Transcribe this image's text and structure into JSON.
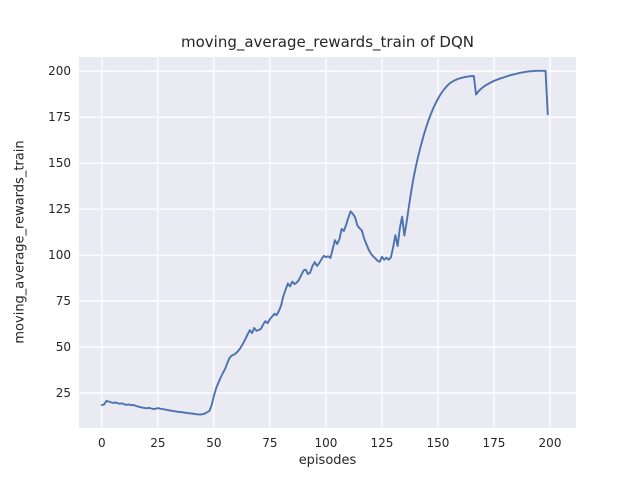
{
  "chart_data": {
    "type": "line",
    "title": "moving_average_rewards_train of DQN",
    "xlabel": "episodes",
    "ylabel": "moving_average_rewards_train",
    "x0": 0,
    "dx": 1,
    "values": [
      18.5,
      18.8,
      20.7,
      20.4,
      20.0,
      19.6,
      19.9,
      19.5,
      19.2,
      19.4,
      18.9,
      18.6,
      18.8,
      18.4,
      18.6,
      18.1,
      17.7,
      17.4,
      17.1,
      16.9,
      16.7,
      17.0,
      16.6,
      16.3,
      16.5,
      16.8,
      16.5,
      16.3,
      16.1,
      15.8,
      15.6,
      15.4,
      15.2,
      15.0,
      14.8,
      14.7,
      14.5,
      14.3,
      14.2,
      14.0,
      13.9,
      13.7,
      13.5,
      13.4,
      13.3,
      13.5,
      13.9,
      14.6,
      15.2,
      18.4,
      23.5,
      27.6,
      30.6,
      33.4,
      35.9,
      38.1,
      41.3,
      44.2,
      45.4,
      45.9,
      46.8,
      48.1,
      49.8,
      51.9,
      54.2,
      56.8,
      59.2,
      57.6,
      60.4,
      58.8,
      59.3,
      59.9,
      62.3,
      64.1,
      63.0,
      65.2,
      66.6,
      68.1,
      67.4,
      69.6,
      72.6,
      77.8,
      81.2,
      84.6,
      83.0,
      85.6,
      84.2,
      85.1,
      86.6,
      89.2,
      91.6,
      92.1,
      89.7,
      90.6,
      94.1,
      96.2,
      94.1,
      95.6,
      97.7,
      99.6,
      98.9,
      99.4,
      98.4,
      103.2,
      108.1,
      106.0,
      108.6,
      114.2,
      113.1,
      116.4,
      120.3,
      123.8,
      122.4,
      120.6,
      116.2,
      114.6,
      113.4,
      109.2,
      106.1,
      103.2,
      100.9,
      99.4,
      98.3,
      96.9,
      96.4,
      99.1,
      97.4,
      98.6,
      97.5,
      98.8,
      104.3,
      110.8,
      104.9,
      114.8,
      120.9,
      110.6,
      117.8,
      126.3,
      134.2,
      141.3,
      147.4,
      152.9,
      157.8,
      162.4,
      166.6,
      170.5,
      174.0,
      177.2,
      180.1,
      182.7,
      185.0,
      187.1,
      188.9,
      190.5,
      191.9,
      193.1,
      194.0,
      194.7,
      195.3,
      195.8,
      196.2,
      196.5,
      196.8,
      197.0,
      197.2,
      197.3,
      197.4,
      187.3,
      188.9,
      190.2,
      191.2,
      192.1,
      192.8,
      193.5,
      194.1,
      194.7,
      195.2,
      195.7,
      196.1,
      196.5,
      196.9,
      197.3,
      197.7,
      198.0,
      198.3,
      198.6,
      198.9,
      199.2,
      199.4,
      199.6,
      199.8,
      199.9,
      200.0,
      200.1,
      200.2,
      200.2,
      200.2,
      200.2,
      200.2,
      176.5
    ],
    "xticks": [
      0,
      25,
      50,
      75,
      100,
      125,
      150,
      175,
      200
    ],
    "yticks": [
      25,
      50,
      75,
      100,
      125,
      150,
      175,
      200
    ],
    "xlim": [
      -10.2,
      211.6
    ],
    "ylim": [
      6.0,
      207.7
    ],
    "grid": true,
    "legend": null,
    "colors": {
      "line": "#4c72b0",
      "plot_bg": "#eaeaf2",
      "grid": "#ffffff",
      "text": "#262626",
      "fig_bg": "#ffffff"
    }
  }
}
